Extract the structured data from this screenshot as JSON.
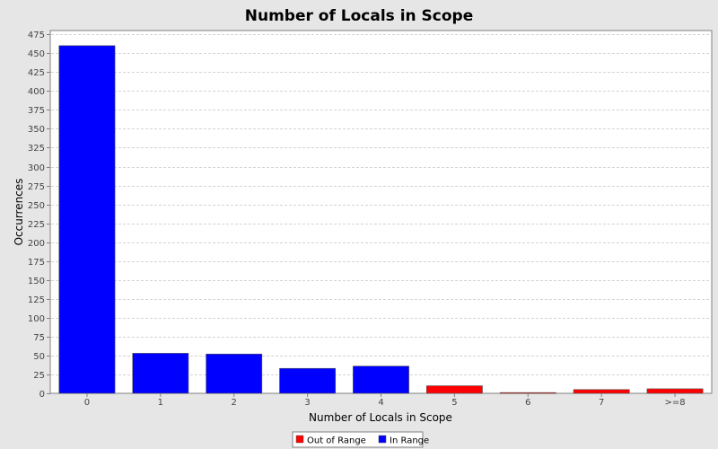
{
  "chart_data": {
    "type": "bar",
    "title": "Number of Locals in Scope",
    "xlabel": "Number of Locals in Scope",
    "ylabel": "Occurrences",
    "ylim": [
      0,
      480
    ],
    "yticks": [
      0,
      25,
      50,
      75,
      100,
      125,
      150,
      175,
      200,
      225,
      250,
      275,
      300,
      325,
      350,
      375,
      400,
      425,
      450,
      475
    ],
    "categories": [
      "0",
      "1",
      "2",
      "3",
      "4",
      "5",
      "6",
      "7",
      ">=8"
    ],
    "values": [
      460,
      53,
      52,
      33,
      36,
      10,
      1,
      5,
      6
    ],
    "value_series": [
      "In Range",
      "In Range",
      "In Range",
      "In Range",
      "In Range",
      "Out of Range",
      "Out of Range",
      "Out of Range",
      "Out of Range"
    ],
    "series": [
      {
        "name": "Out of Range",
        "color": "#ff0000"
      },
      {
        "name": "In Range",
        "color": "#0000ff"
      }
    ],
    "grid": true,
    "legend_position": "bottom"
  }
}
